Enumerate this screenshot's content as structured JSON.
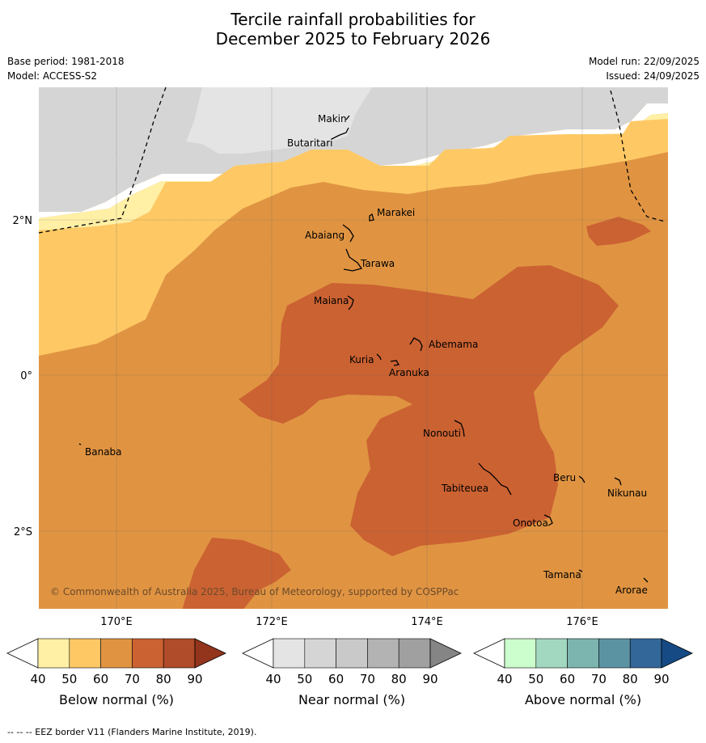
{
  "title": {
    "line1": "Tercile rainfall probabilities for",
    "line2": "December 2025 to February 2026"
  },
  "meta": {
    "base_period": "Base period: 1981-2018",
    "model": "Model: ACCESS-S2",
    "model_run": "Model run: 22/09/2025",
    "issued": "Issued: 24/09/2025"
  },
  "axes": {
    "lat_labels": [
      "2°N",
      "0°",
      "2°S"
    ],
    "lon_labels": [
      "170°E",
      "172°E",
      "174°E",
      "176°E"
    ]
  },
  "places": {
    "makin": "Makin",
    "butaritari": "Butaritari",
    "marakei": "Marakei",
    "abaiang": "Abaiang",
    "tarawa": "Tarawa",
    "maiana": "Maiana",
    "abemama": "Abemama",
    "kuria": "Kuria",
    "aranuka": "Aranuka",
    "banaba": "Banaba",
    "nonouti": "Nonouti",
    "beru": "Beru",
    "nikunau": "Nikunau",
    "tabiteuea": "Tabiteuea",
    "onotoa": "Onotoa",
    "tamana": "Tamana",
    "arorae": "Arorae"
  },
  "copyright": "© Commonwealth of Australia 2025, Bureau of Meteorology, supported by COSPPac",
  "colorbars": {
    "ticks": [
      "40",
      "50",
      "60",
      "70",
      "80",
      "90"
    ],
    "below": {
      "label": "Below normal (%)",
      "colors": [
        "#ffffff",
        "#fff0a6",
        "#fec965",
        "#e09442",
        "#cb6232",
        "#b04c29",
        "#93341c"
      ]
    },
    "near": {
      "label": "Near normal (%)",
      "colors": [
        "#ffffff",
        "#e4e4e4",
        "#d5d5d5",
        "#c9c9c9",
        "#b3b3b3",
        "#a0a0a0",
        "#858585"
      ]
    },
    "above": {
      "label": "Above normal (%)",
      "colors": [
        "#ffffff",
        "#ccfdcd",
        "#a2d8bf",
        "#7cb5b0",
        "#5c93a3",
        "#336799",
        "#154a84"
      ]
    }
  },
  "footer": "--  --  -- EEZ border V11 (Flanders Marine Institute, 2019)."
}
